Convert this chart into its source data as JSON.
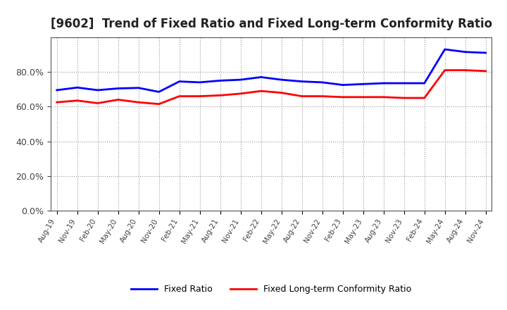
{
  "title": "[9602]  Trend of Fixed Ratio and Fixed Long-term Conformity Ratio",
  "x_labels": [
    "Aug-19",
    "Nov-19",
    "Feb-20",
    "May-20",
    "Aug-20",
    "Nov-20",
    "Feb-21",
    "May-21",
    "Aug-21",
    "Nov-21",
    "Feb-22",
    "May-22",
    "Aug-22",
    "Nov-22",
    "Feb-23",
    "May-23",
    "Aug-23",
    "Nov-23",
    "Feb-24",
    "May-24",
    "Aug-24",
    "Nov-24"
  ],
  "fixed_ratio": [
    69.5,
    71.0,
    69.5,
    70.5,
    70.8,
    68.5,
    74.5,
    74.0,
    75.0,
    75.5,
    77.0,
    75.5,
    74.5,
    74.0,
    72.5,
    73.0,
    73.5,
    73.5,
    73.5,
    93.0,
    91.5,
    91.0
  ],
  "fixed_lt_ratio": [
    62.5,
    63.5,
    62.0,
    64.0,
    62.5,
    61.5,
    66.0,
    66.0,
    66.5,
    67.5,
    69.0,
    68.0,
    66.0,
    66.0,
    65.5,
    65.5,
    65.5,
    65.0,
    65.0,
    81.0,
    81.0,
    80.5
  ],
  "fixed_ratio_color": "#0000ff",
  "fixed_lt_ratio_color": "#ff0000",
  "ylim": [
    0,
    100
  ],
  "yticks": [
    0,
    20,
    40,
    60,
    80
  ],
  "background_color": "#ffffff",
  "plot_bg_color": "#ffffff",
  "grid_color": "#999999",
  "legend_fixed_ratio": "Fixed Ratio",
  "legend_fixed_lt_ratio": "Fixed Long-term Conformity Ratio"
}
